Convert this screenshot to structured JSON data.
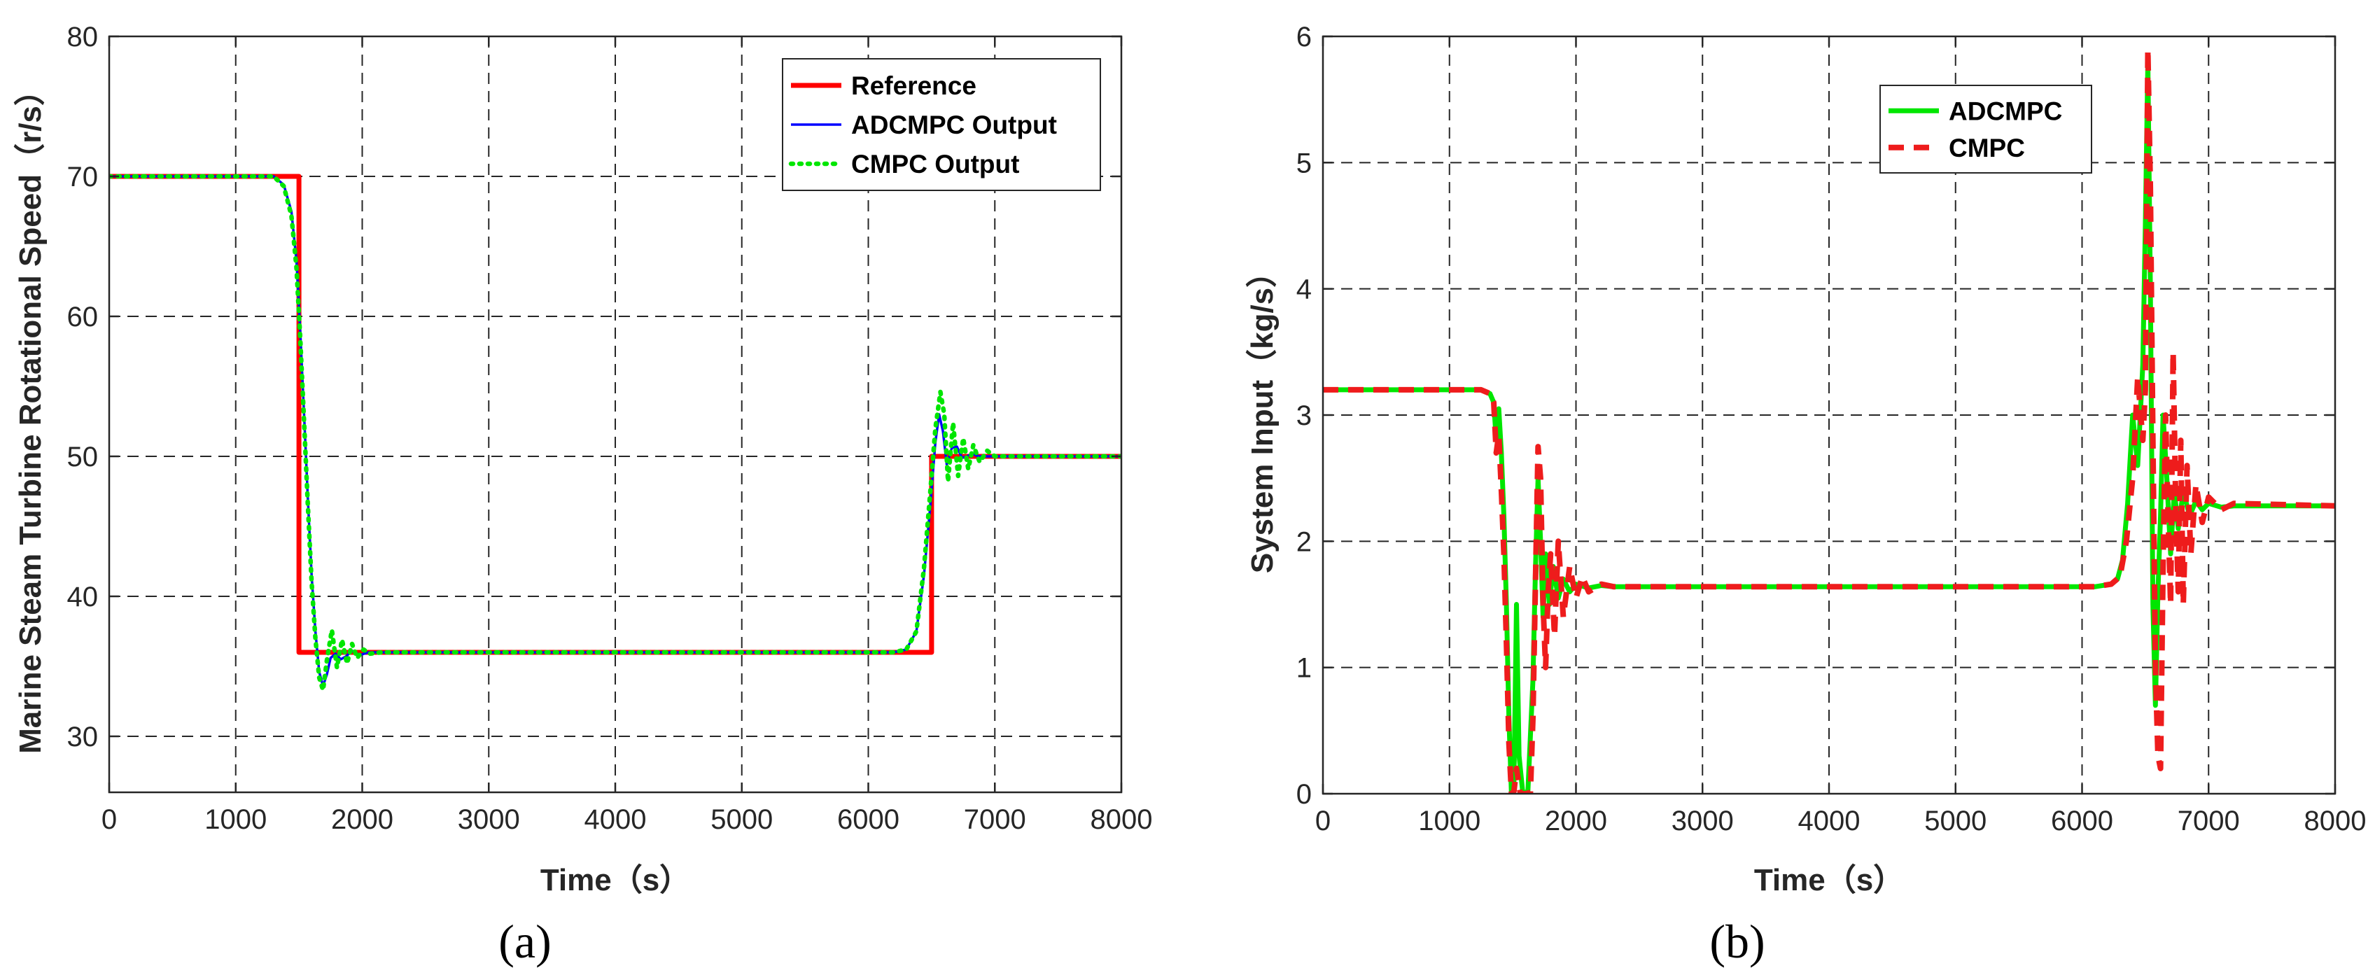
{
  "colors": {
    "reference": "#ff0000",
    "adcmpc_output": "#0000ff",
    "cmpc_output": "#00e600",
    "adcmpc_input": "#00e600",
    "cmpc_input": "#ee1c1c",
    "grid": "#262626",
    "axis": "#262626"
  },
  "chart_data": [
    {
      "id": "a",
      "panel_label": "(a)",
      "type": "line",
      "xlabel": "Time（s）",
      "ylabel": "Marine Steam Turbine Rotational Speed（r/s）",
      "xlim": [
        0,
        8000
      ],
      "ylim": [
        26,
        80
      ],
      "xticks": [
        0,
        1000,
        2000,
        3000,
        4000,
        5000,
        6000,
        7000,
        8000
      ],
      "yticks": [
        30,
        40,
        50,
        60,
        70,
        80
      ],
      "grid": true,
      "legend_position": "top-right",
      "series": [
        {
          "name": "Reference",
          "color_key": "reference",
          "style": "solid-thick",
          "x": [
            0,
            1500,
            1500,
            6500,
            6500,
            8000
          ],
          "y": [
            70,
            70,
            36,
            36,
            50,
            50
          ]
        },
        {
          "name": "ADCMPC Output",
          "color_key": "adcmpc_output",
          "style": "solid-thin",
          "x": [
            0,
            1300,
            1380,
            1440,
            1480,
            1510,
            1540,
            1570,
            1600,
            1630,
            1660,
            1690,
            1720,
            1750,
            1790,
            1830,
            1870,
            1920,
            1980,
            2050,
            2150,
            2300,
            6200,
            6300,
            6380,
            6440,
            6490,
            6530,
            6560,
            6590,
            6620,
            6660,
            6700,
            6740,
            6780,
            6820,
            6870,
            6940,
            7100,
            8000
          ],
          "y": [
            70,
            70,
            69.4,
            67.5,
            64,
            59,
            53,
            47,
            41.5,
            37.5,
            34.6,
            33.6,
            34.4,
            35.6,
            35.9,
            35.5,
            35.7,
            36.1,
            35.8,
            36.0,
            36.0,
            36.0,
            36.0,
            36.2,
            37.5,
            41.5,
            46.5,
            51,
            53,
            51.8,
            49.4,
            50.6,
            50.7,
            49.9,
            50.0,
            50.2,
            50.0,
            50.0,
            50.0,
            50.0
          ]
        },
        {
          "name": "CMPC Output",
          "color_key": "cmpc_output",
          "style": "dotted",
          "x": [
            0,
            1300,
            1380,
            1440,
            1480,
            1510,
            1540,
            1570,
            1600,
            1630,
            1660,
            1690,
            1720,
            1760,
            1800,
            1840,
            1880,
            1920,
            1960,
            2010,
            2060,
            2150,
            2300,
            6200,
            6300,
            6380,
            6440,
            6490,
            6530,
            6570,
            6600,
            6630,
            6670,
            6710,
            6750,
            6790,
            6830,
            6880,
            6940,
            7000,
            7100,
            8000
          ],
          "y": [
            70,
            70,
            69.3,
            67.2,
            63.5,
            58.5,
            52.5,
            46.5,
            41,
            37,
            34.2,
            33.3,
            35.4,
            37.6,
            34.9,
            36.9,
            35.2,
            36.6,
            35.6,
            36.2,
            35.9,
            36.0,
            36.0,
            36.0,
            36.2,
            37.5,
            42,
            47.5,
            52,
            54.6,
            53.0,
            48.2,
            52.4,
            48.6,
            51.3,
            49.1,
            50.8,
            49.6,
            50.4,
            50.0,
            50.0,
            50.0
          ]
        }
      ]
    },
    {
      "id": "b",
      "panel_label": "(b)",
      "type": "line",
      "xlabel": "Time（s）",
      "ylabel": "System Input（kg/s）",
      "xlim": [
        0,
        8000
      ],
      "ylim": [
        0,
        6
      ],
      "xticks": [
        0,
        1000,
        2000,
        3000,
        4000,
        5000,
        6000,
        7000,
        8000
      ],
      "yticks": [
        0,
        1,
        2,
        3,
        4,
        5,
        6
      ],
      "grid": true,
      "legend_position": "top-center",
      "series": [
        {
          "name": "ADCMPC",
          "color_key": "adcmpc_input",
          "style": "solid-thick",
          "x": [
            0,
            1250,
            1320,
            1350,
            1370,
            1390,
            1410,
            1430,
            1450,
            1470,
            1490,
            1510,
            1530,
            1550,
            1580,
            1620,
            1660,
            1680,
            1700,
            1720,
            1740,
            1760,
            1790,
            1820,
            1860,
            1900,
            1950,
            2000,
            2100,
            2200,
            2300,
            6100,
            6230,
            6280,
            6320,
            6360,
            6400,
            6440,
            6480,
            6500,
            6520,
            6540,
            6560,
            6580,
            6600,
            6620,
            6640,
            6670,
            6700,
            6730,
            6760,
            6800,
            6850,
            6900,
            6950,
            7000,
            7100,
            7200,
            8000
          ],
          "y": [
            3.2,
            3.2,
            3.17,
            3.1,
            2.8,
            3.05,
            2.7,
            2.2,
            1.5,
            0.6,
            0,
            0.1,
            1.5,
            0.3,
            0,
            0.02,
            0.9,
            1.8,
            2.5,
            2.0,
            1.4,
            1.9,
            1.5,
            1.8,
            1.55,
            1.7,
            1.6,
            1.66,
            1.63,
            1.65,
            1.64,
            1.64,
            1.66,
            1.7,
            1.85,
            2.3,
            3.0,
            2.6,
            3.4,
            4.5,
            5.8,
            4.0,
            1.5,
            0.7,
            1.6,
            2.2,
            3.0,
            2.5,
            1.9,
            2.4,
            2.1,
            2.4,
            2.2,
            2.32,
            2.25,
            2.3,
            2.27,
            2.28,
            2.28
          ]
        },
        {
          "name": "CMPC",
          "color_key": "cmpc_input",
          "style": "dashed-thick",
          "x": [
            0,
            1250,
            1320,
            1350,
            1370,
            1390,
            1410,
            1430,
            1450,
            1470,
            1490,
            1510,
            1530,
            1560,
            1600,
            1640,
            1660,
            1680,
            1700,
            1720,
            1740,
            1760,
            1780,
            1800,
            1830,
            1860,
            1900,
            1950,
            2000,
            2050,
            2100,
            2200,
            2300,
            6100,
            6230,
            6300,
            6350,
            6400,
            6440,
            6480,
            6500,
            6520,
            6540,
            6560,
            6580,
            6600,
            6620,
            6640,
            6660,
            6680,
            6700,
            6720,
            6740,
            6760,
            6780,
            6800,
            6830,
            6860,
            6900,
            6950,
            7000,
            7100,
            7200,
            8000
          ],
          "y": [
            3.2,
            3.2,
            3.17,
            3.1,
            2.7,
            2.85,
            2.4,
            1.9,
            1.2,
            0.4,
            0,
            0.02,
            0.2,
            0,
            0,
            0.01,
            0.6,
            1.7,
            2.75,
            2.5,
            1.5,
            1.0,
            1.6,
            1.9,
            1.25,
            2.0,
            1.4,
            1.8,
            1.55,
            1.72,
            1.6,
            1.66,
            1.64,
            1.64,
            1.66,
            1.72,
            2.0,
            2.5,
            3.3,
            2.8,
            3.2,
            5.9,
            4.8,
            2.8,
            1.0,
            0.3,
            0.2,
            1.8,
            3.0,
            2.2,
            1.5,
            3.5,
            2.3,
            1.6,
            2.8,
            1.5,
            2.6,
            1.9,
            2.45,
            2.15,
            2.35,
            2.25,
            2.3,
            2.28
          ]
        }
      ]
    }
  ]
}
